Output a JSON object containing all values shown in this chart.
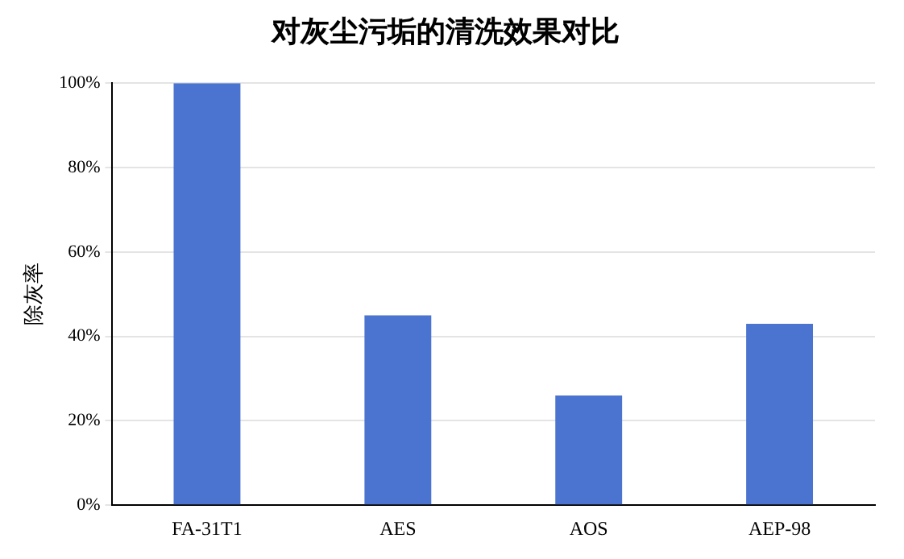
{
  "chart_data": {
    "type": "bar",
    "title": "对灰尘污垢的清洗效果对比",
    "ylabel": "除灰率",
    "categories": [
      "FA-31T1",
      "AES",
      "AOS",
      "AEP-98"
    ],
    "values": [
      100,
      45,
      26,
      43
    ],
    "color": "#4a74d0",
    "ylim": [
      0,
      100
    ],
    "yticks": [
      {
        "value": 0,
        "label": "0%"
      },
      {
        "value": 20,
        "label": "20%"
      },
      {
        "value": 40,
        "label": "40%"
      },
      {
        "value": 60,
        "label": "60%"
      },
      {
        "value": 80,
        "label": "80%"
      },
      {
        "value": 100,
        "label": "100%"
      }
    ],
    "grid": "y"
  }
}
